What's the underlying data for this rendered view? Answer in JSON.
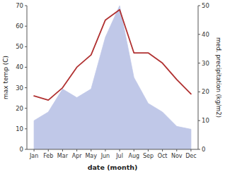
{
  "chart_data": {
    "type": "line",
    "xlabel": "date (month)",
    "ylabel": "max temp (C)",
    "y2label": "med. precipitation (kg/m2)",
    "categories": [
      "Jan",
      "Feb",
      "Mar",
      "Apr",
      "May",
      "Jun",
      "Jul",
      "Aug",
      "Sep",
      "Oct",
      "Nov",
      "Dec"
    ],
    "series": [
      {
        "type": "area",
        "axis": "y2",
        "color": "#c0c8e8",
        "values": [
          10,
          13,
          21,
          18,
          21,
          39,
          50,
          25,
          16,
          13,
          8,
          7
        ]
      },
      {
        "type": "line",
        "color": "#b03030",
        "values": [
          26,
          24,
          30,
          40,
          46,
          63,
          68,
          47,
          47,
          42,
          34,
          27
        ]
      }
    ],
    "ylim": [
      0,
      70
    ],
    "yticks": [
      0,
      10,
      20,
      30,
      40,
      50,
      60,
      70
    ],
    "y2lim": [
      0,
      50
    ],
    "y2ticks": [
      0,
      10,
      20,
      30,
      40,
      50
    ],
    "grid": false
  }
}
